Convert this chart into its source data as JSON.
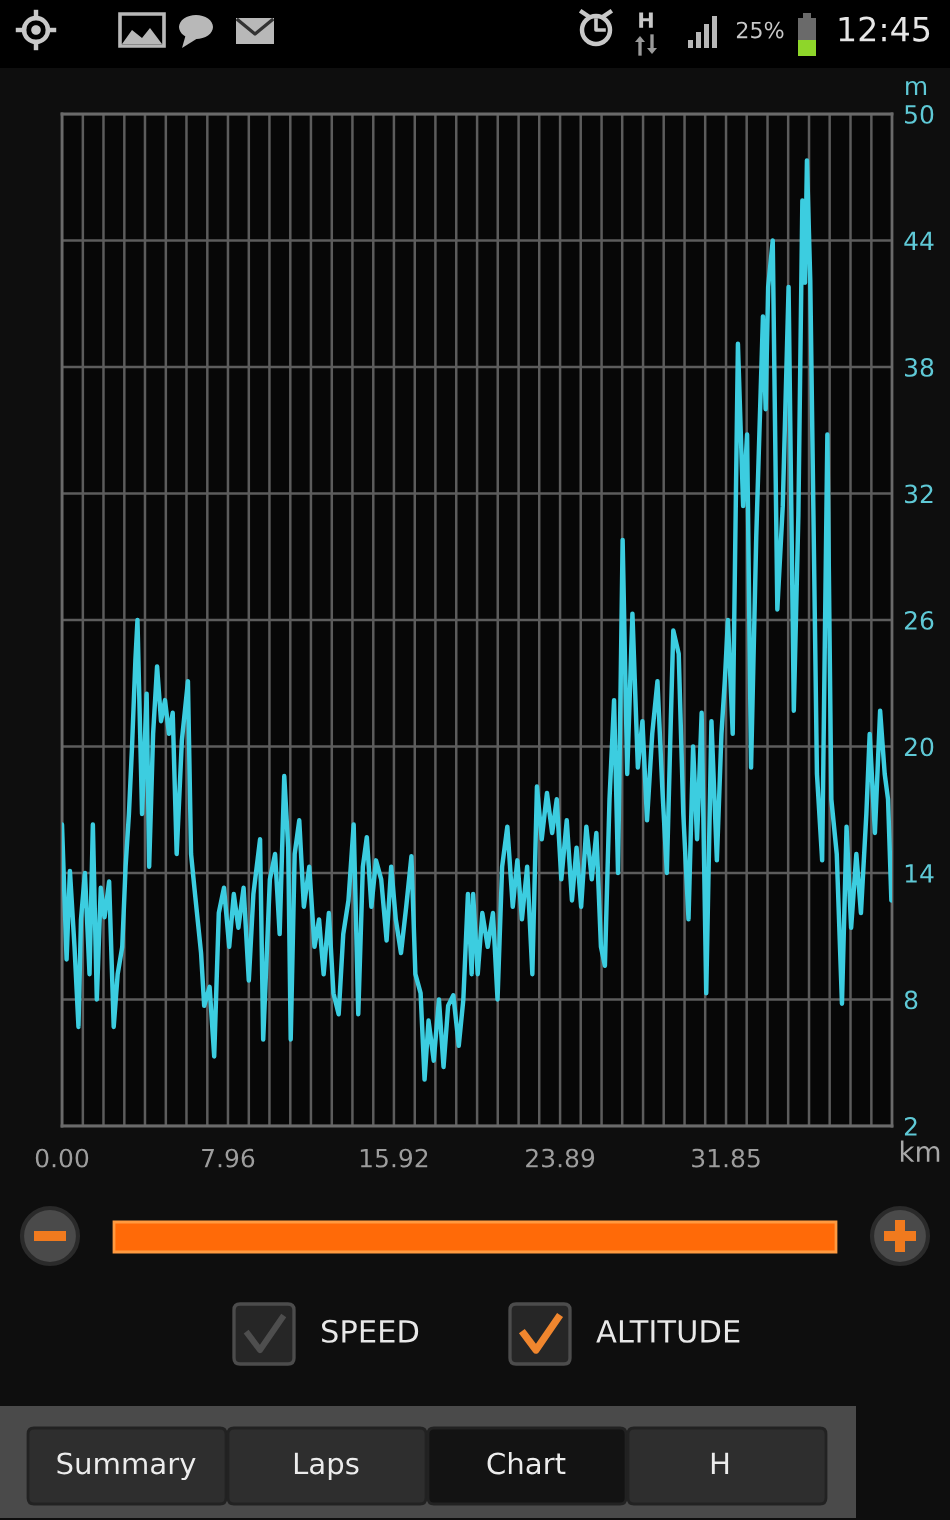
{
  "chart_data": {
    "type": "line",
    "xlabel": "km",
    "ylabel": "m",
    "xlim": [
      0,
      39.81
    ],
    "ylim": [
      2,
      50
    ],
    "xticks": [
      {
        "value": 0,
        "label": "0.00"
      },
      {
        "value": 1.0,
        "label": null
      },
      {
        "value": 1.99,
        "label": null
      },
      {
        "value": 2.99,
        "label": null
      },
      {
        "value": 3.98,
        "label": null
      },
      {
        "value": 4.98,
        "label": null
      },
      {
        "value": 5.97,
        "label": null
      },
      {
        "value": 6.97,
        "label": null
      },
      7.96,
      {
        "value": 8.96,
        "label": null
      },
      {
        "value": 9.95,
        "label": null
      },
      {
        "value": 10.95,
        "label": null
      },
      {
        "value": 11.94,
        "label": null
      },
      {
        "value": 12.94,
        "label": null
      },
      {
        "value": 13.93,
        "label": null
      },
      {
        "value": 14.93,
        "label": null
      },
      15.92,
      {
        "value": 16.92,
        "label": null
      },
      {
        "value": 17.91,
        "label": null
      },
      {
        "value": 18.91,
        "label": null
      },
      {
        "value": 19.91,
        "label": null
      },
      {
        "value": 20.9,
        "label": null
      },
      {
        "value": 21.9,
        "label": null
      },
      {
        "value": 22.89,
        "label": null
      },
      23.89,
      {
        "value": 24.88,
        "label": null
      },
      {
        "value": 25.88,
        "label": null
      },
      {
        "value": 26.87,
        "label": null
      },
      {
        "value": 27.87,
        "label": null
      },
      {
        "value": 28.86,
        "label": null
      },
      {
        "value": 29.86,
        "label": null
      },
      {
        "value": 30.85,
        "label": null
      },
      31.85,
      {
        "value": 32.84,
        "label": null
      },
      {
        "value": 33.84,
        "label": null
      },
      {
        "value": 34.83,
        "label": null
      },
      {
        "value": 35.83,
        "label": null
      },
      {
        "value": 36.82,
        "label": null
      },
      {
        "value": 37.82,
        "label": null
      },
      {
        "value": 38.82,
        "label": null
      }
    ],
    "yticks": [
      2,
      8,
      14,
      20,
      26,
      32,
      38,
      44,
      50
    ],
    "grid": true,
    "series": [
      {
        "color": "#3ccde0",
        "x": [
          0,
          0.22,
          0.38,
          0.6,
          0.79,
          0.91,
          1.1,
          1.32,
          1.48,
          1.67,
          1.86,
          2.04,
          2.26,
          2.48,
          2.67,
          2.89,
          3.05,
          3.21,
          3.36,
          3.52,
          3.62,
          3.84,
          4.06,
          4.18,
          4.37,
          4.56,
          4.75,
          4.94,
          5.13,
          5.31,
          5.5,
          5.75,
          6.04,
          6.19,
          6.38,
          6.67,
          6.82,
          7.08,
          7.3,
          7.52,
          7.77,
          8.02,
          8.24,
          8.46,
          8.71,
          8.96,
          9.18,
          9.5,
          9.65,
          9.97,
          10.22,
          10.44,
          10.66,
          10.85,
          10.97,
          11.16,
          11.38,
          11.6,
          11.86,
          12.11,
          12.33,
          12.55,
          12.8,
          13.02,
          13.27,
          13.49,
          13.74,
          13.99,
          14.21,
          14.43,
          14.62,
          14.84,
          15.06,
          15.31,
          15.57,
          15.79,
          16.01,
          16.26,
          16.51,
          16.76,
          16.95,
          17.2,
          17.39,
          17.58,
          17.83,
          18.08,
          18.3,
          18.52,
          18.77,
          19.03,
          19.25,
          19.47,
          19.65,
          19.72,
          19.94,
          20.16,
          20.42,
          20.67,
          20.89,
          21.11,
          21.36,
          21.62,
          21.84,
          22.06,
          22.31,
          22.56,
          22.78,
          23.01,
          23.26,
          23.51,
          23.73,
          23.95,
          24.21,
          24.46,
          24.68,
          24.9,
          25.15,
          25.41,
          25.63,
          25.85,
          26.04,
          26.26,
          26.48,
          26.67,
          26.89,
          27.11,
          27.36,
          27.62,
          27.84,
          28.06,
          28.31,
          28.56,
          28.79,
          29.01,
          29.2,
          29.32,
          29.58,
          29.8,
          30.05,
          30.27,
          30.46,
          30.68,
          30.9,
          31.15,
          31.41,
          31.63,
          31.79,
          31.94,
          32.17,
          32.42,
          32.67,
          32.86,
          33.05,
          33.3,
          33.62,
          33.75,
          33.87,
          34.09,
          34.31,
          34.57,
          34.85,
          35.1,
          35.32,
          35.51,
          35.64,
          35.73,
          35.89,
          36.21,
          36.46,
          36.71,
          36.9,
          37.16,
          37.41,
          37.63,
          37.85,
          38.1,
          38.32,
          38.58,
          38.74,
          38.99,
          39.24,
          39.46,
          39.62,
          39.78
        ],
        "values": [
          16.3,
          9.9,
          14.1,
          10.5,
          6.7,
          11.8,
          14.0,
          9.2,
          16.3,
          8.0,
          13.3,
          11.9,
          13.6,
          6.7,
          9.2,
          10.5,
          14.3,
          16.8,
          20.0,
          24.1,
          26.0,
          16.8,
          22.5,
          14.3,
          20.6,
          23.8,
          21.2,
          22.2,
          20.6,
          21.6,
          14.9,
          20.3,
          23.1,
          14.9,
          13.0,
          10.2,
          7.7,
          8.6,
          5.3,
          12.1,
          13.3,
          10.5,
          13.0,
          11.4,
          13.3,
          8.9,
          13.0,
          15.6,
          6.1,
          13.7,
          14.9,
          11.1,
          18.6,
          15.2,
          6.1,
          14.9,
          16.5,
          12.4,
          14.3,
          10.5,
          11.8,
          9.2,
          12.1,
          8.3,
          7.3,
          11.1,
          12.7,
          16.3,
          7.3,
          14.3,
          15.7,
          12.4,
          14.6,
          13.7,
          10.8,
          14.3,
          11.8,
          10.2,
          12.4,
          14.8,
          9.2,
          8.3,
          4.2,
          7.0,
          5.1,
          8.0,
          4.8,
          7.7,
          8.2,
          5.8,
          8.0,
          13.0,
          9.2,
          13.0,
          9.2,
          12.1,
          10.5,
          12.1,
          8.0,
          14.3,
          16.2,
          12.4,
          14.6,
          11.8,
          14.3,
          9.2,
          18.1,
          15.6,
          17.8,
          15.9,
          17.5,
          13.7,
          16.5,
          12.7,
          15.2,
          12.4,
          16.2,
          13.7,
          15.9,
          10.5,
          9.6,
          17.5,
          22.2,
          14.0,
          29.8,
          18.7,
          26.3,
          19.0,
          21.2,
          16.5,
          20.6,
          23.1,
          18.1,
          14.0,
          21.2,
          25.5,
          24.4,
          16.8,
          11.8,
          20.0,
          15.6,
          21.6,
          8.3,
          21.2,
          14.6,
          20.6,
          23.1,
          26.0,
          20.6,
          39.1,
          31.4,
          34.8,
          19.0,
          30.0,
          40.4,
          36.0,
          41.8,
          44.0,
          26.5,
          31.4,
          41.8,
          21.7,
          31.0,
          45.9,
          42.0,
          47.8,
          42.1,
          18.7,
          14.6,
          34.8,
          17.5,
          14.9,
          7.8,
          16.2,
          11.4,
          14.9,
          12.1,
          16.8,
          20.6,
          15.9,
          21.7,
          18.7,
          17.5,
          12.7
        ]
      }
    ],
    "annotations": [
      "H",
      "25%",
      "12:45",
      "SPEED",
      "ALTITUDE",
      "Summary",
      "Laps",
      "Chart",
      "H"
    ]
  }
}
